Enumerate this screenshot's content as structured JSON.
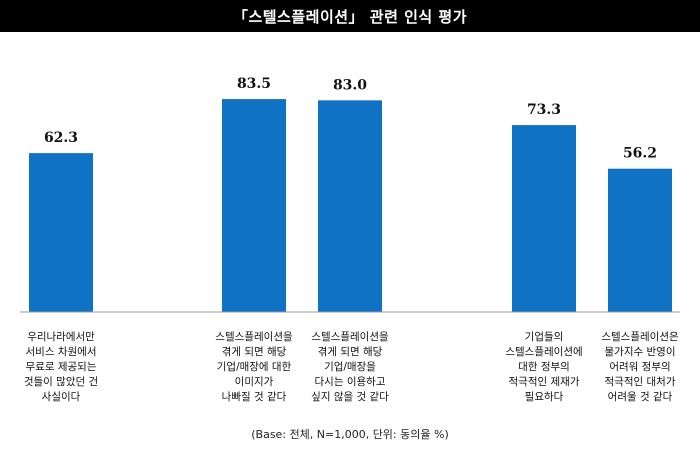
{
  "chart_data": {
    "type": "bar",
    "title": "「스텔스플레이션」 관련 인식 평가",
    "categories": [
      "우리나라에서만\n서비스 차원에서\n무료로 제공되는\n것들이 많았던 건\n사실이다",
      "스텔스플레이션을\n겪게 되면 해당\n기업/매장에 대한\n이미지가\n나빠질 것 같다",
      "스텔스플레이션을\n겪게 되면 해당\n기업/매장을\n다시는 이용하고\n싶지 않을 것 같다",
      "기업들의\n스텔스플레이션에\n대한 정부의\n적극적인 제재가\n필요하다",
      "스텔스플레이션은\n물가지수 반영이\n어려워 정부의\n적극적인 대처가\n어려울 것 같다"
    ],
    "values": [
      62.3,
      83.5,
      83.0,
      73.3,
      56.2
    ],
    "value_labels": [
      "62.3",
      "83.5",
      "83.0",
      "73.3",
      "56.2"
    ],
    "ylim": [
      0,
      100
    ],
    "bar_color": "#0f72c4",
    "footnote": "(Base: 전체, N=1,000, 단위: 동의율 %)"
  }
}
